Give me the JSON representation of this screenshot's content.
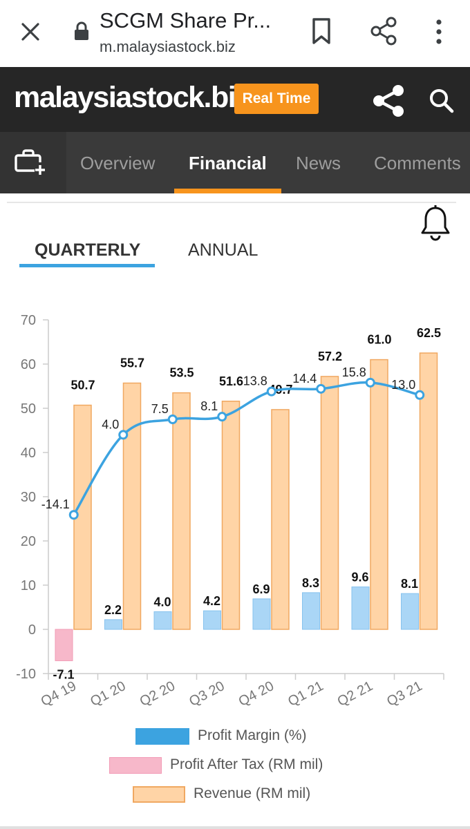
{
  "browser": {
    "page_title": "SCGM Share Pr...",
    "url_host": "m.malaysiastock.biz"
  },
  "header": {
    "logo_text": "malaysiastock.biz",
    "badge": "Real Time"
  },
  "nav": {
    "tabs": [
      {
        "label": "Overview",
        "active": false
      },
      {
        "label": "Financial",
        "active": true
      },
      {
        "label": "News",
        "active": false
      },
      {
        "label": "Comments",
        "active": false
      }
    ]
  },
  "period": {
    "tabs": [
      {
        "label": "QUARTERLY",
        "active": true
      },
      {
        "label": "ANNUAL",
        "active": false
      }
    ]
  },
  "colors": {
    "accent_orange": "#f7941d",
    "period_underline": "#3ca3e0",
    "margin_line": "#3ca3e0",
    "pat_positive": "#aad6f6",
    "pat_negative": "#f7b8ca",
    "revenue": "#ffd4a6"
  },
  "chart_data": {
    "type": "bar",
    "categories": [
      "Q4 19",
      "Q1 20",
      "Q2 20",
      "Q3 20",
      "Q4 20",
      "Q1 21",
      "Q2 21",
      "Q3 21"
    ],
    "ylim": [
      -10,
      70
    ],
    "yticks": [
      -10,
      0,
      10,
      20,
      30,
      40,
      50,
      60,
      70
    ],
    "series": [
      {
        "name": "Profit After Tax (RM mil)",
        "values": [
          -7.1,
          2.2,
          4.0,
          4.2,
          6.9,
          8.3,
          9.6,
          8.1
        ],
        "labels": [
          "-7.1",
          "2.2",
          "4.0",
          "4.2",
          "6.9",
          "8.3",
          "9.6",
          "8.1"
        ]
      },
      {
        "name": "Revenue (RM mil)",
        "values": [
          50.7,
          55.7,
          53.5,
          51.6,
          49.7,
          57.2,
          61.0,
          62.5
        ],
        "labels": [
          "50.7",
          "55.7",
          "53.5",
          "51.6",
          "49.7",
          "57.2",
          "61.0",
          "62.5"
        ]
      },
      {
        "name": "Profit Margin (%)",
        "values": [
          -14.1,
          4.0,
          7.5,
          8.1,
          13.8,
          14.4,
          15.8,
          13.0
        ],
        "labels": [
          "-14.1",
          "4.0",
          "7.5",
          "8.1",
          "13.8",
          "14.4",
          "15.8",
          "13.0"
        ]
      }
    ],
    "legend": [
      "Profit Margin (%)",
      "Profit After Tax (RM mil)",
      "Revenue (RM mil)"
    ],
    "legend_position": "bottom",
    "grid": false
  }
}
